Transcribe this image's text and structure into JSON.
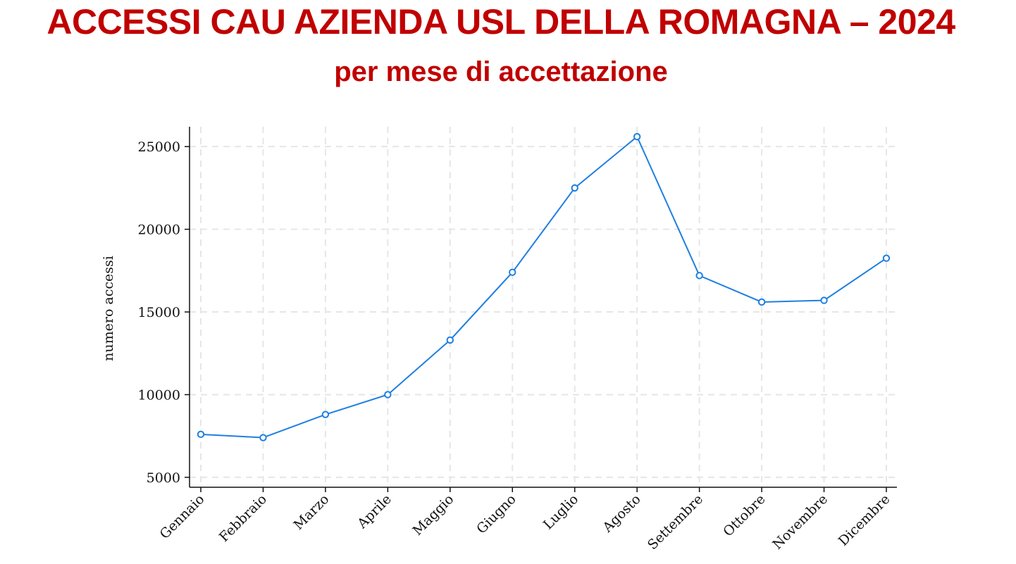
{
  "title": "ACCESSI CAU AZIENDA USL DELLA ROMAGNA – 2024",
  "subtitle": "per mese di accettazione",
  "chart_data": {
    "type": "line",
    "title": "ACCESSI CAU AZIENDA USL DELLA ROMAGNA – 2024",
    "subtitle": "per mese di accettazione",
    "xlabel": "",
    "ylabel": "numero accessi",
    "categories": [
      "Gennaio",
      "Febbraio",
      "Marzo",
      "Aprile",
      "Maggio",
      "Giugno",
      "Luglio",
      "Agosto",
      "Settembre",
      "Ottobre",
      "Novembre",
      "Dicembre"
    ],
    "series": [
      {
        "values": [
          7600,
          7400,
          8800,
          10000,
          13300,
          17400,
          22500,
          25600,
          17200,
          15600,
          15700,
          18250
        ]
      }
    ],
    "yticks": [
      5000,
      10000,
      15000,
      20000,
      25000
    ],
    "ylim": [
      4400,
      26200
    ],
    "grid": true,
    "line_color": "#1f7fe0",
    "title_color": "#c00000"
  }
}
